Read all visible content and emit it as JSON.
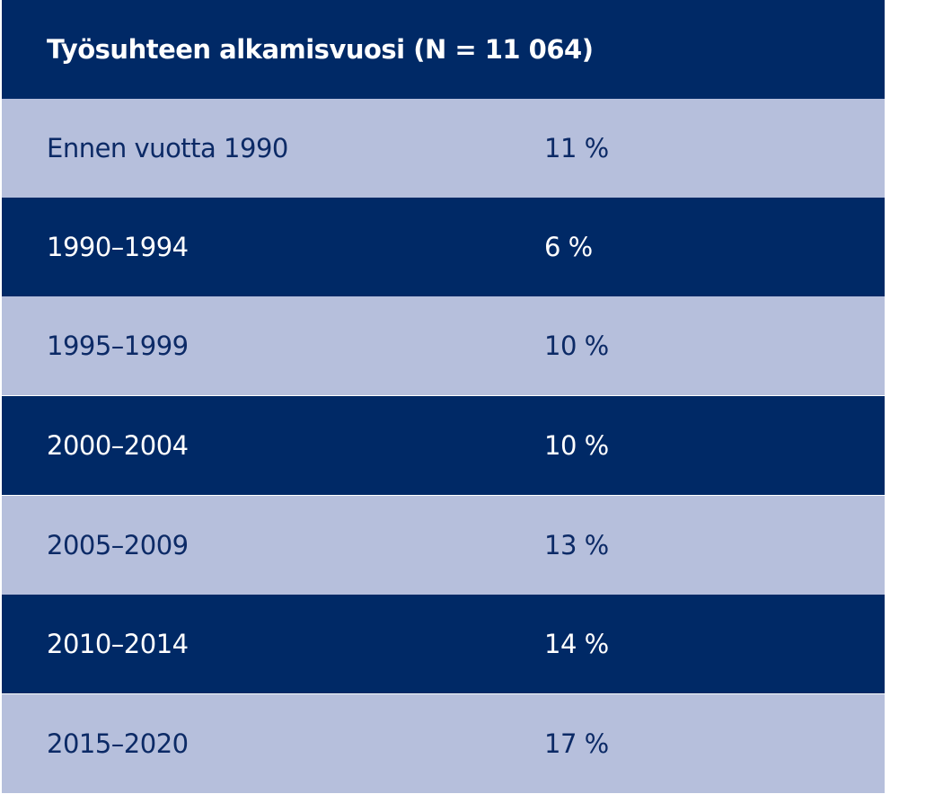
{
  "table": {
    "header": "Työsuhteen alkamisvuosi (N = 11 064)",
    "rows": [
      {
        "label": "Ennen vuotta 1990",
        "value": "11 %"
      },
      {
        "label": "1990–1994",
        "value": "6 %"
      },
      {
        "label": "1995–1999",
        "value": "10 %"
      },
      {
        "label": "2000–2004",
        "value": "10 %"
      },
      {
        "label": "2005–2009",
        "value": "13 %"
      },
      {
        "label": "2010–2014",
        "value": "14 %"
      },
      {
        "label": "2015–2020",
        "value": "17 %"
      }
    ]
  },
  "colors": {
    "dark_row": "#002966",
    "light_row": "#b6bfdc",
    "dark_text": "#ffffff",
    "light_text": "#0c2a66"
  },
  "chart_data": {
    "type": "table",
    "title": "Työsuhteen alkamisvuosi (N = 11 064)",
    "categories": [
      "Ennen vuotta 1990",
      "1990–1994",
      "1995–1999",
      "2000–2004",
      "2005–2009",
      "2010–2014",
      "2015–2020"
    ],
    "values": [
      11,
      6,
      10,
      10,
      13,
      14,
      17
    ],
    "unit": "%"
  }
}
